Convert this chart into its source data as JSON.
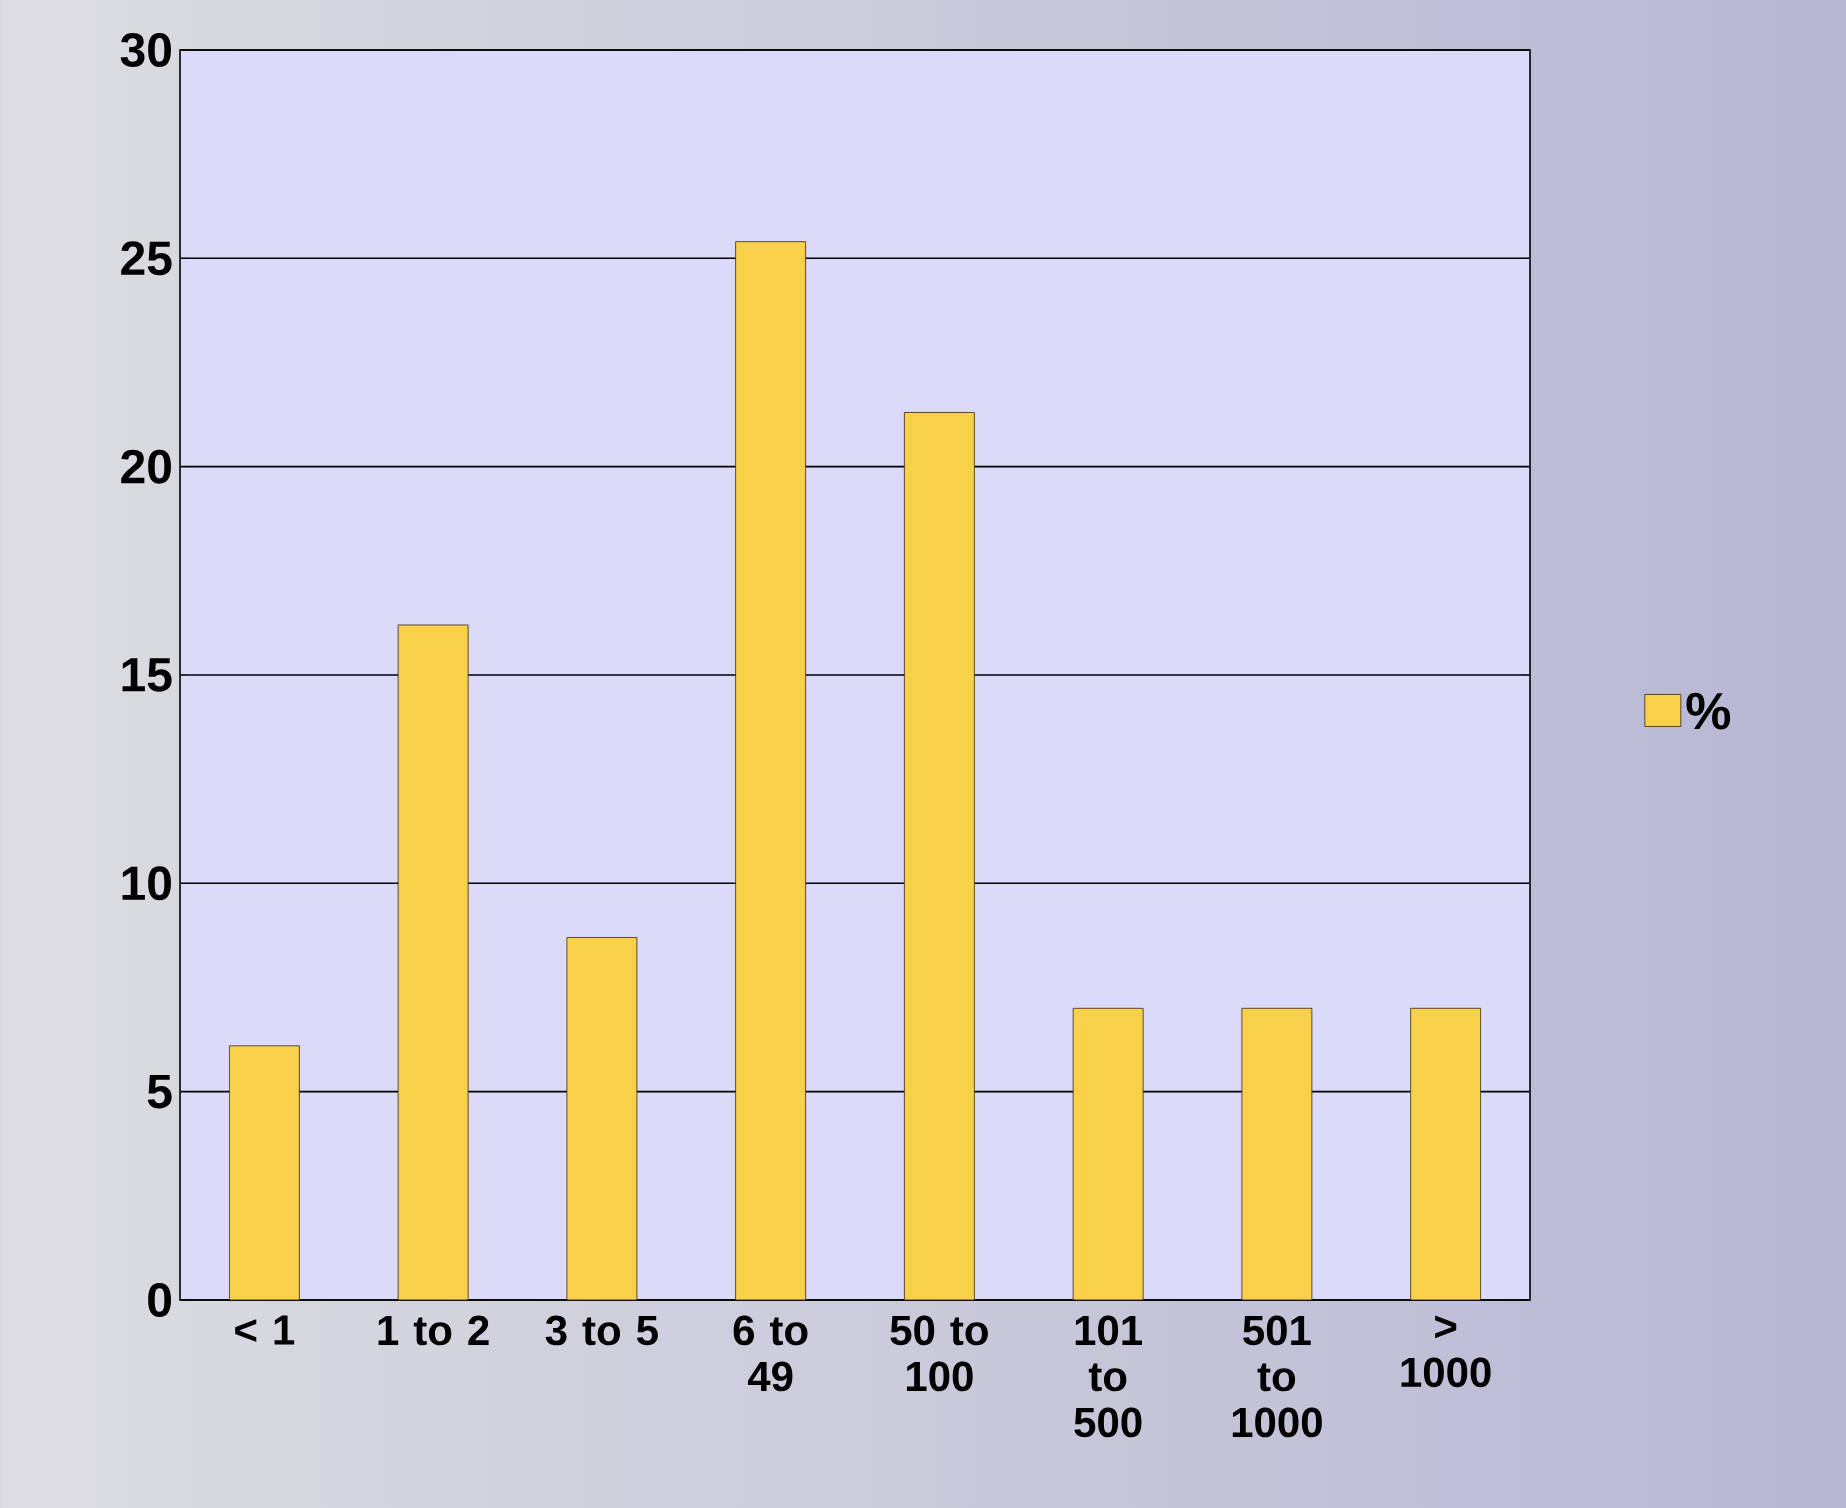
{
  "chart_data": {
    "type": "bar",
    "categories": [
      "< 1",
      "1 to 2",
      "3 to 5",
      "6 to 49",
      "50 to 100",
      "101 to 500",
      "501 to 1000",
      "> 1000"
    ],
    "series": [
      {
        "name": "%",
        "color": "#f9d04a",
        "values": [
          6.1,
          16.2,
          8.7,
          25.4,
          21.3,
          7,
          7,
          7
        ]
      }
    ],
    "ylim": [
      0,
      30
    ],
    "yticks": [
      0,
      5,
      10,
      15,
      20,
      25,
      30
    ],
    "grid": "y",
    "legend": "right"
  }
}
